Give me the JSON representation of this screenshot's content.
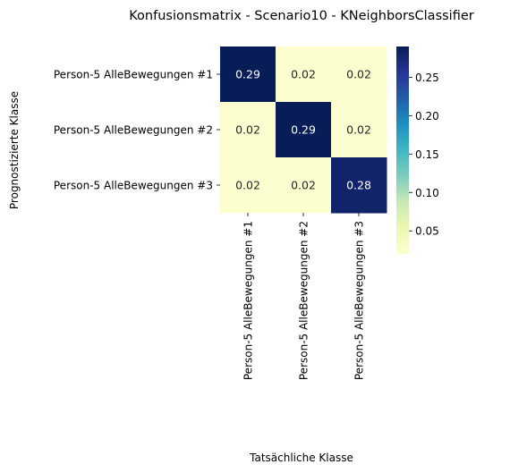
{
  "chart_data": {
    "type": "heatmap",
    "title": "Konfusionsmatrix - Scenario10 - KNeighborsClassifier",
    "xlabel": "Tatsächliche Klasse",
    "ylabel": "Prognostizierte Klasse",
    "x_categories": [
      "Person-5 AlleBewegungen #1",
      "Person-5 AlleBewegungen #2",
      "Person-5 AlleBewegungen #3"
    ],
    "y_categories": [
      "Person-5 AlleBewegungen #1",
      "Person-5 AlleBewegungen #2",
      "Person-5 AlleBewegungen #3"
    ],
    "values": [
      [
        0.29,
        0.02,
        0.02
      ],
      [
        0.02,
        0.29,
        0.02
      ],
      [
        0.02,
        0.02,
        0.28
      ]
    ],
    "value_labels": [
      [
        "0.29",
        "0.02",
        "0.02"
      ],
      [
        "0.02",
        "0.29",
        "0.02"
      ],
      [
        "0.02",
        "0.02",
        "0.28"
      ]
    ],
    "colormap": "YlGnBu",
    "colorbar": {
      "range": [
        0.02,
        0.29
      ],
      "ticks": [
        0.05,
        0.1,
        0.15,
        0.2,
        0.25
      ],
      "tick_labels": [
        "0.05",
        "0.10",
        "0.15",
        "0.20",
        "0.25"
      ]
    },
    "grid": false
  }
}
